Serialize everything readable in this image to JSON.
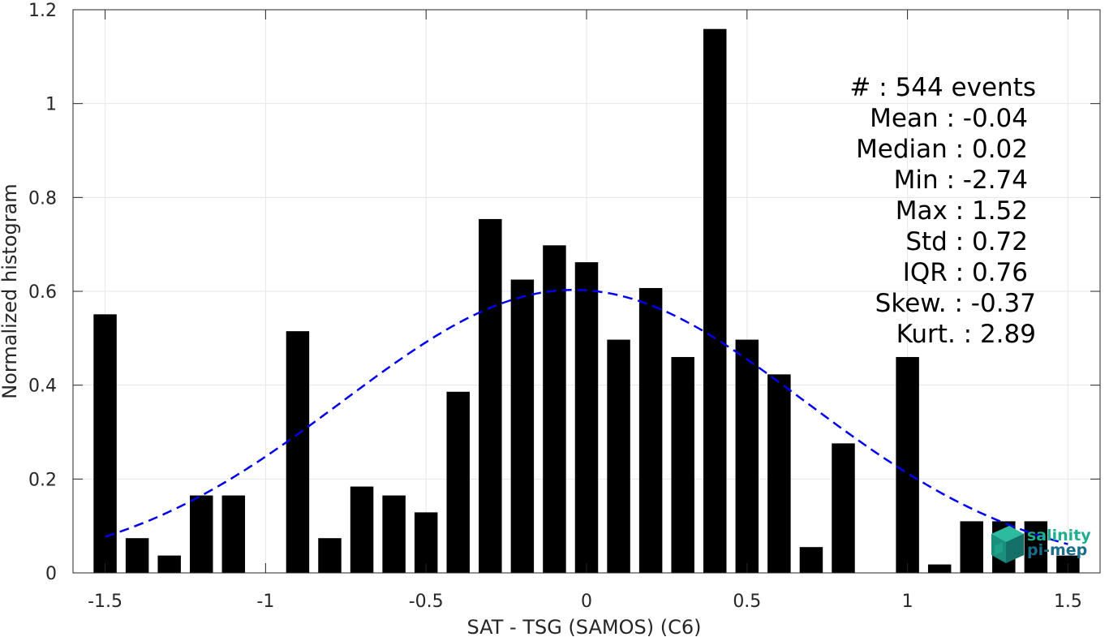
{
  "chart_data": {
    "type": "bar",
    "xlabel": "SAT - TSG (SAMOS) (C6)",
    "ylabel": "Normalized histogram",
    "xlim": [
      -1.6,
      1.6
    ],
    "ylim": [
      0,
      1.2
    ],
    "xticks": [
      -1.5,
      -1,
      -0.5,
      0,
      0.5,
      1,
      1.5
    ],
    "xtick_labels": [
      "-1.5",
      "-1",
      "-0.5",
      "0",
      "0.5",
      "1",
      "1.5"
    ],
    "yticks": [
      0,
      0.2,
      0.4,
      0.6,
      0.8,
      1,
      1.2
    ],
    "ytick_labels": [
      "0",
      "0.2",
      "0.4",
      "0.6",
      "0.8",
      "1",
      "1.2"
    ],
    "grid": true,
    "bar_color": "#000000",
    "bins": [
      -1.5,
      -1.4,
      -1.3,
      -1.2,
      -1.1,
      -1.0,
      -0.9,
      -0.8,
      -0.7,
      -0.6,
      -0.5,
      -0.4,
      -0.3,
      -0.2,
      -0.1,
      0.0,
      0.1,
      0.2,
      0.3,
      0.4,
      0.5,
      0.6,
      0.7,
      0.8,
      0.9,
      1.0,
      1.1,
      1.2,
      1.3,
      1.4,
      1.5
    ],
    "values": [
      0.551,
      0.074,
      0.037,
      0.165,
      0.165,
      0.0,
      0.515,
      0.074,
      0.184,
      0.165,
      0.129,
      0.386,
      0.754,
      0.625,
      0.698,
      0.662,
      0.497,
      0.607,
      0.46,
      1.159,
      0.497,
      0.423,
      0.055,
      0.276,
      0.0,
      0.46,
      0.018,
      0.11,
      0.11,
      0.11,
      0.037
    ],
    "fit_curve": {
      "type": "gaussian",
      "mean": -0.04,
      "std": 0.72,
      "peak": 0.603,
      "color": "#0000ee",
      "style": "dashed",
      "x_range": [
        -1.5,
        1.5
      ]
    },
    "annotation": {
      "lines": [
        "#  : 544 events",
        "Mean : -0.04",
        "Median : 0.02",
        "Min : -2.74",
        "Max : 1.52",
        "Std : 0.72",
        "IQR : 0.76",
        "Skew. : -0.37",
        "Kurt. : 2.89"
      ]
    }
  },
  "logo": {
    "line1": "salinity",
    "line2": "pi-mep",
    "color1": "#1fae8e",
    "color2": "#1a6e8a"
  }
}
